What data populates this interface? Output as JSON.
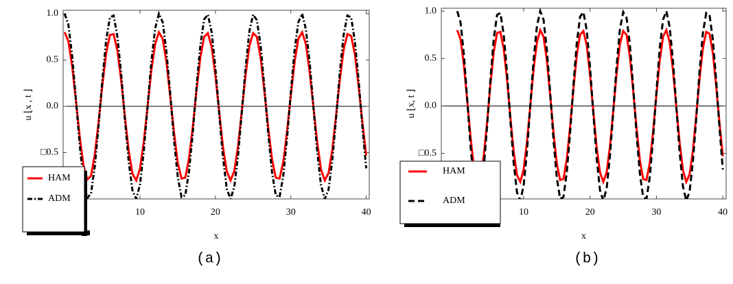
{
  "chart_data": [
    {
      "type": "line",
      "caption": "(a)",
      "xlabel": "x",
      "ylabel": "u ⌊x , t ⌋",
      "xlim": [
        -0.2,
        40.4
      ],
      "ylim": [
        -1.0,
        1.037
      ],
      "xticks": [
        10,
        20,
        30,
        40
      ],
      "yticks": [
        {
          "value": -0.5,
          "label": "□0.5"
        },
        {
          "value": 0,
          "label": "0.0"
        },
        0.5,
        {
          "value": 1,
          "label": "1.0"
        }
      ],
      "zero_line": true,
      "legend": "lower left",
      "x": [
        0,
        0.5,
        1,
        1.5,
        2,
        2.5,
        3,
        3.5,
        4,
        4.5,
        5,
        5.5,
        6,
        6.5,
        7,
        7.5,
        8,
        8.5,
        9,
        9.5,
        10,
        10.5,
        11,
        11.5,
        12,
        12.5,
        13,
        13.5,
        14,
        14.5,
        15,
        15.5,
        16,
        16.5,
        17,
        17.5,
        18,
        18.5,
        19,
        19.5,
        20,
        20.5,
        21,
        21.5,
        22,
        22.5,
        23,
        23.5,
        24,
        24.5,
        25,
        25.5,
        26,
        26.5,
        27,
        27.5,
        28,
        28.5,
        29,
        29.5,
        30,
        30.5,
        31,
        31.5,
        32,
        32.5,
        33,
        33.5,
        34,
        34.5,
        35,
        35.5,
        36,
        36.5,
        37,
        37.5,
        38,
        38.5,
        39,
        39.5,
        40
      ],
      "series": [
        {
          "name": "HAM",
          "color": "#ff0000",
          "linestyle": "solid",
          "values": [
            0.8,
            0.7,
            0.43,
            0.06,
            -0.33,
            -0.64,
            -0.79,
            -0.75,
            -0.52,
            -0.17,
            0.23,
            0.57,
            0.77,
            0.78,
            0.6,
            0.28,
            -0.12,
            -0.48,
            -0.73,
            -0.8,
            -0.67,
            -0.38,
            0.0,
            0.39,
            0.67,
            0.8,
            0.73,
            0.48,
            0.11,
            -0.28,
            -0.61,
            -0.78,
            -0.77,
            -0.56,
            -0.22,
            0.18,
            0.53,
            0.75,
            0.79,
            0.64,
            0.33,
            -0.06,
            -0.44,
            -0.7,
            -0.8,
            -0.7,
            -0.43,
            -0.05,
            0.34,
            0.65,
            0.79,
            0.75,
            0.52,
            0.16,
            -0.23,
            -0.57,
            -0.77,
            -0.78,
            -0.6,
            -0.27,
            0.12,
            0.48,
            0.73,
            0.8,
            0.67,
            0.37,
            -0.01,
            -0.39,
            -0.68,
            -0.8,
            -0.72,
            -0.47,
            -0.1,
            0.29,
            0.61,
            0.78,
            0.76,
            0.56,
            0.21,
            -0.18,
            -0.53
          ]
        },
        {
          "name": "ADM",
          "color": "#000000",
          "linestyle": "dashdot",
          "values": [
            1.0,
            0.88,
            0.54,
            0.07,
            -0.42,
            -0.8,
            -0.99,
            -0.94,
            -0.65,
            -0.21,
            0.28,
            0.71,
            0.96,
            0.98,
            0.75,
            0.35,
            -0.15,
            -0.6,
            -0.91,
            -1.0,
            -0.84,
            -0.48,
            0.0,
            0.48,
            0.84,
            1.0,
            0.91,
            0.59,
            0.14,
            -0.36,
            -0.76,
            -0.98,
            -0.96,
            -0.7,
            -0.28,
            0.22,
            0.66,
            0.94,
            0.99,
            0.8,
            0.41,
            -0.08,
            -0.55,
            -0.89,
            -1.0,
            -0.87,
            -0.53,
            -0.06,
            0.42,
            0.81,
            0.99,
            0.93,
            0.65,
            0.2,
            -0.29,
            -0.71,
            -0.96,
            -0.98,
            -0.75,
            -0.34,
            0.15,
            0.61,
            0.91,
            1.0,
            0.83,
            0.47,
            -0.01,
            -0.49,
            -0.85,
            -1.0,
            -0.9,
            -0.58,
            -0.13,
            0.37,
            0.77,
            0.98,
            0.96,
            0.7,
            0.27,
            -0.23,
            -0.67
          ]
        }
      ]
    },
    {
      "type": "line",
      "caption": "(b)",
      "xlabel": "x",
      "ylabel": "u ⌊x, t ⌋",
      "xlim": [
        -2.4,
        40.5
      ],
      "ylim": [
        -0.98,
        1.03
      ],
      "xticks": [
        10,
        20,
        30,
        40
      ],
      "yticks": [
        {
          "value": -0.5,
          "label": "□0.5"
        },
        {
          "value": 0,
          "label": "0.0"
        },
        0.5,
        {
          "value": 1,
          "label": "1.0"
        }
      ],
      "zero_line": true,
      "legend": "lower left",
      "x": [
        0,
        0.5,
        1,
        1.5,
        2,
        2.5,
        3,
        3.5,
        4,
        4.5,
        5,
        5.5,
        6,
        6.5,
        7,
        7.5,
        8,
        8.5,
        9,
        9.5,
        10,
        10.5,
        11,
        11.5,
        12,
        12.5,
        13,
        13.5,
        14,
        14.5,
        15,
        15.5,
        16,
        16.5,
        17,
        17.5,
        18,
        18.5,
        19,
        19.5,
        20,
        20.5,
        21,
        21.5,
        22,
        22.5,
        23,
        23.5,
        24,
        24.5,
        25,
        25.5,
        26,
        26.5,
        27,
        27.5,
        28,
        28.5,
        29,
        29.5,
        30,
        30.5,
        31,
        31.5,
        32,
        32.5,
        33,
        33.5,
        34,
        34.5,
        35,
        35.5,
        36,
        36.5,
        37,
        37.5,
        38,
        38.5,
        39,
        39.5,
        40
      ],
      "series": [
        {
          "name": "HAM",
          "color": "#ff0000",
          "linestyle": "solid",
          "values": [
            0.8,
            0.7,
            0.43,
            0.06,
            -0.33,
            -0.64,
            -0.79,
            -0.75,
            -0.52,
            -0.17,
            0.23,
            0.57,
            0.77,
            0.78,
            0.6,
            0.28,
            -0.12,
            -0.48,
            -0.73,
            -0.8,
            -0.67,
            -0.38,
            0.0,
            0.39,
            0.67,
            0.8,
            0.73,
            0.48,
            0.11,
            -0.28,
            -0.61,
            -0.78,
            -0.77,
            -0.56,
            -0.22,
            0.18,
            0.53,
            0.75,
            0.79,
            0.64,
            0.33,
            -0.06,
            -0.44,
            -0.7,
            -0.8,
            -0.7,
            -0.43,
            -0.05,
            0.34,
            0.65,
            0.79,
            0.75,
            0.52,
            0.16,
            -0.23,
            -0.57,
            -0.77,
            -0.78,
            -0.6,
            -0.27,
            0.12,
            0.48,
            0.73,
            0.8,
            0.67,
            0.37,
            -0.01,
            -0.39,
            -0.68,
            -0.8,
            -0.72,
            -0.47,
            -0.1,
            0.29,
            0.61,
            0.78,
            0.76,
            0.56,
            0.21,
            -0.18,
            -0.53
          ]
        },
        {
          "name": "ADM",
          "color": "#000000",
          "linestyle": "dashed",
          "values": [
            1.0,
            0.88,
            0.54,
            0.07,
            -0.42,
            -0.8,
            -0.99,
            -0.94,
            -0.65,
            -0.21,
            0.28,
            0.71,
            0.96,
            0.98,
            0.75,
            0.35,
            -0.15,
            -0.6,
            -0.91,
            -1.0,
            -0.84,
            -0.48,
            0.0,
            0.48,
            0.84,
            1.0,
            0.91,
            0.59,
            0.14,
            -0.36,
            -0.76,
            -0.98,
            -0.96,
            -0.7,
            -0.28,
            0.22,
            0.66,
            0.94,
            0.99,
            0.8,
            0.41,
            -0.08,
            -0.55,
            -0.89,
            -1.0,
            -0.87,
            -0.53,
            -0.06,
            0.42,
            0.81,
            0.99,
            0.93,
            0.65,
            0.2,
            -0.29,
            -0.71,
            -0.96,
            -0.98,
            -0.75,
            -0.34,
            0.15,
            0.61,
            0.91,
            1.0,
            0.83,
            0.47,
            -0.01,
            -0.49,
            -0.85,
            -1.0,
            -0.9,
            -0.58,
            -0.13,
            0.37,
            0.77,
            0.98,
            0.96,
            0.7,
            0.27,
            -0.23,
            -0.67
          ]
        }
      ]
    }
  ]
}
